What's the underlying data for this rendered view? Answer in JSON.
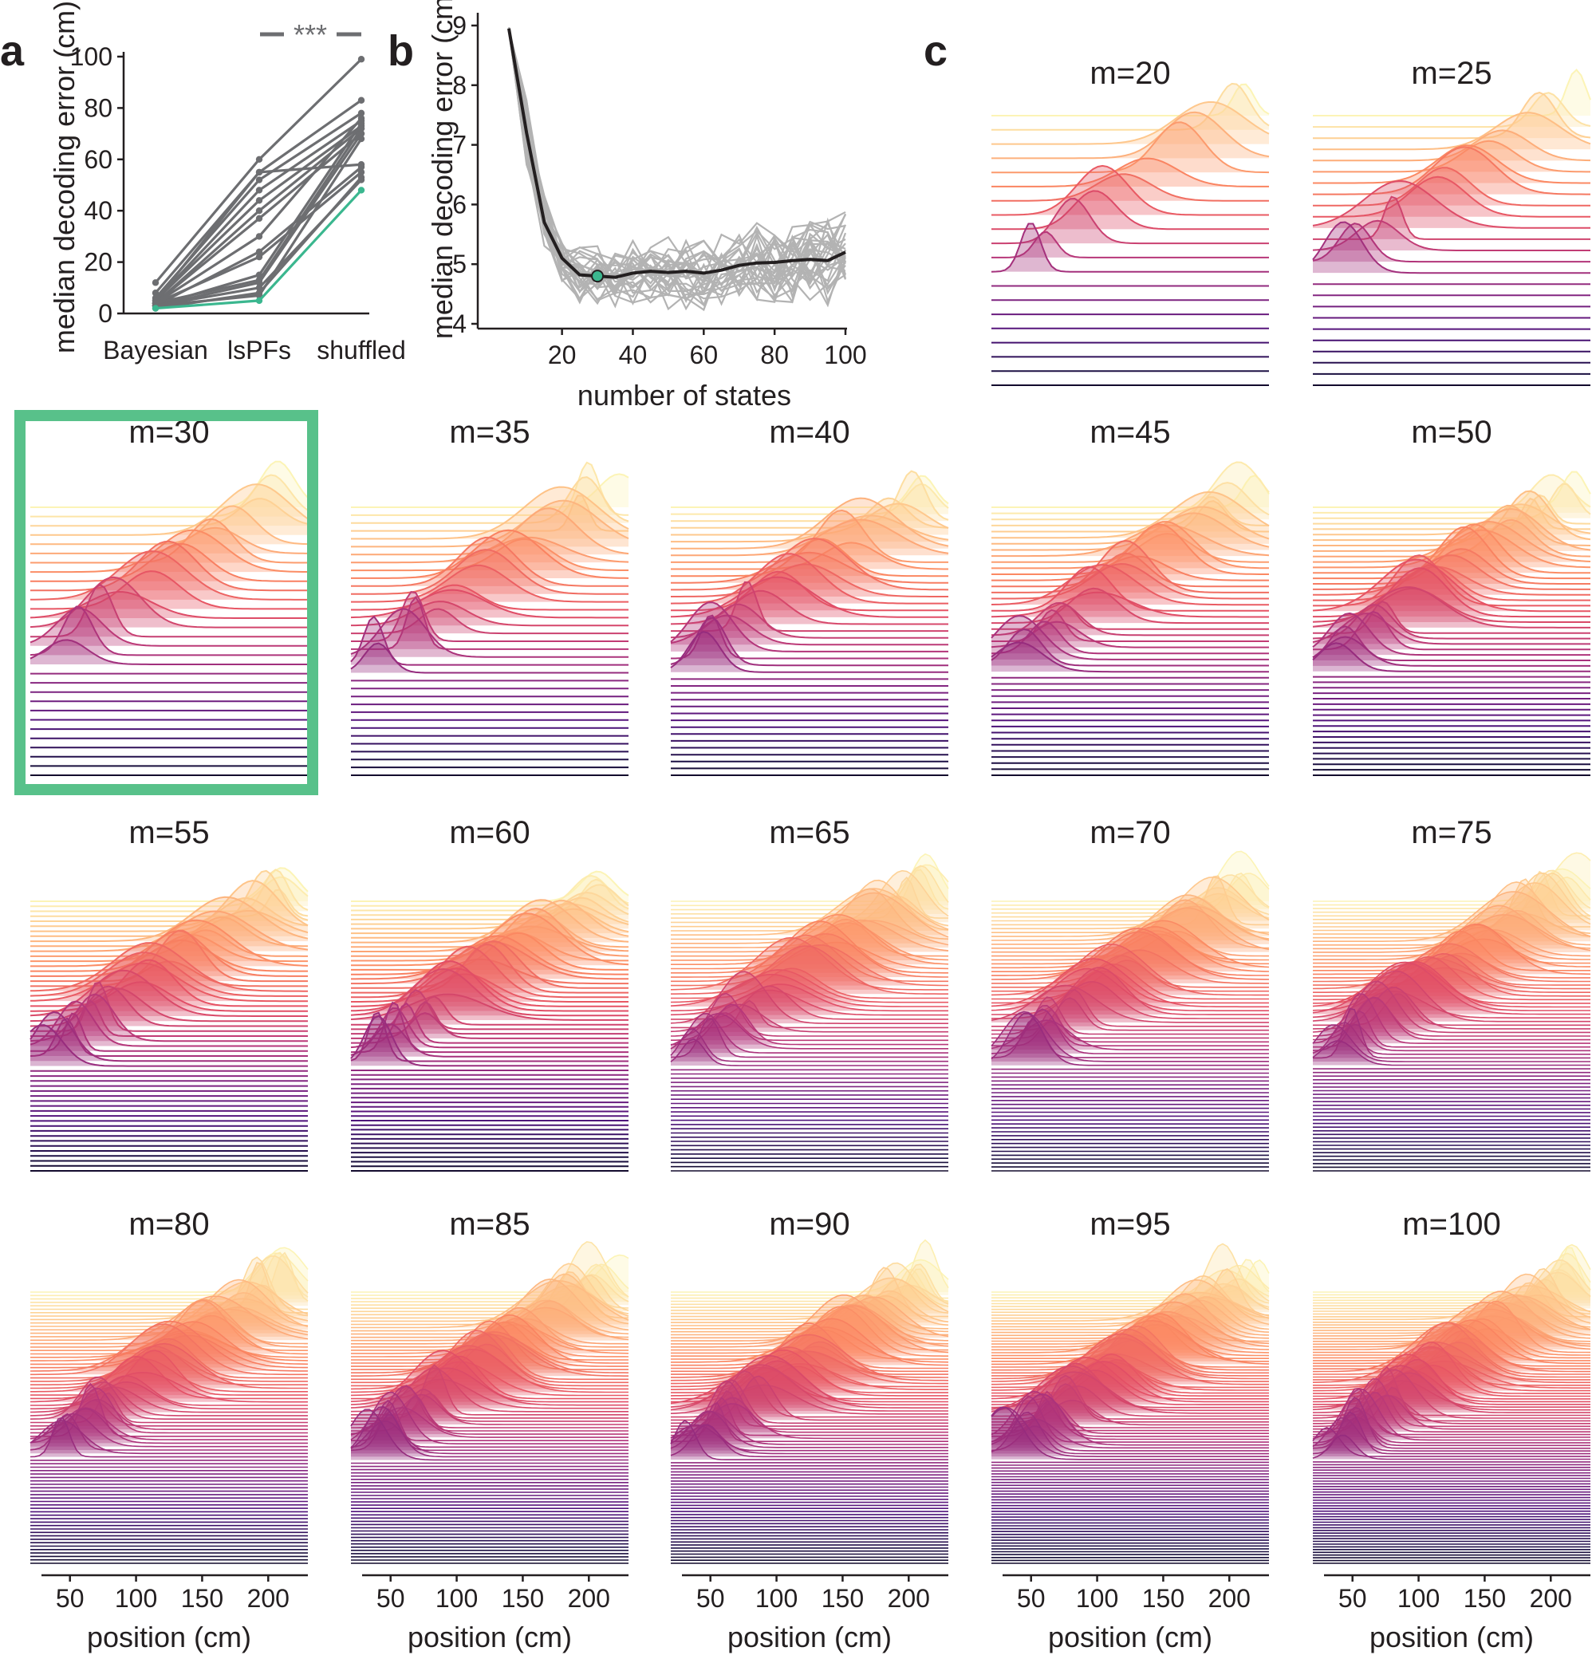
{
  "panel_labels": [
    "a",
    "b",
    "c"
  ],
  "chart_data": [
    {
      "panel": "a",
      "type": "line",
      "categories": [
        "Bayesian",
        "lsPFs",
        "shuffled"
      ],
      "ylabel": "median decoding error (cm)",
      "xlabel": "",
      "ylim": [
        0,
        100
      ],
      "yticks": [
        0,
        20,
        40,
        60,
        80,
        100
      ],
      "significance": "***",
      "colors": {
        "sessions": "#6d6e71",
        "highlight": "#3bb78f"
      },
      "series": [
        {
          "values": [
            12,
            60,
            99
          ]
        },
        {
          "values": [
            8,
            55,
            83
          ]
        },
        {
          "values": [
            6,
            52,
            78
          ]
        },
        {
          "values": [
            5,
            48,
            75
          ]
        },
        {
          "values": [
            5,
            44,
            73
          ]
        },
        {
          "values": [
            4,
            40,
            72
          ]
        },
        {
          "values": [
            4,
            37,
            70
          ]
        },
        {
          "values": [
            4,
            30,
            76
          ]
        },
        {
          "values": [
            3,
            24,
            57
          ]
        },
        {
          "values": [
            4,
            22,
            55
          ]
        },
        {
          "values": [
            5,
            55,
            58
          ]
        },
        {
          "values": [
            3,
            15,
            74
          ]
        },
        {
          "values": [
            4,
            13,
            72
          ]
        },
        {
          "values": [
            3,
            12,
            70
          ]
        },
        {
          "values": [
            3,
            10,
            52
          ]
        },
        {
          "values": [
            2,
            8,
            53
          ]
        },
        {
          "values": [
            3,
            7,
            68
          ]
        },
        {
          "values": [
            2,
            5,
            48
          ],
          "highlight": true
        }
      ]
    },
    {
      "panel": "b",
      "type": "line",
      "xlabel": "number of states",
      "ylabel": "median decoding error (cm)",
      "xlim": [
        0,
        100
      ],
      "ylim": [
        4,
        9
      ],
      "xticks": [
        20,
        40,
        60,
        80,
        100
      ],
      "yticks": [
        4,
        5,
        6,
        7,
        8,
        9
      ],
      "colors": {
        "individual": "#b3b3b3",
        "mean": "#231f20",
        "optimum": "#3bb78f"
      },
      "x": [
        5,
        10,
        15,
        20,
        25,
        30,
        35,
        40,
        45,
        50,
        55,
        60,
        65,
        70,
        75,
        80,
        85,
        90,
        95,
        100
      ],
      "series": [
        {
          "values": [
            8.95,
            7.2,
            5.7,
            5.1,
            4.82,
            4.8,
            4.78,
            4.85,
            4.88,
            4.86,
            4.88,
            4.85,
            4.9,
            4.98,
            5.02,
            5.03,
            5.06,
            5.08,
            5.06,
            5.2
          ]
        }
      ],
      "optimum": {
        "x": 30,
        "y": 4.8
      },
      "n_individual": 28
    },
    {
      "panel": "c",
      "type": "ridgeline",
      "xlabel": "position (cm)",
      "xlim": [
        20,
        230
      ],
      "xticks": [
        50,
        100,
        150,
        200
      ],
      "selected_m": 30,
      "colormap": "magma",
      "highlight_color": "#58c18a",
      "panels": [
        20,
        25,
        30,
        35,
        40,
        45,
        50,
        55,
        60,
        65,
        70,
        75,
        80,
        85,
        90,
        95,
        100
      ]
    }
  ]
}
